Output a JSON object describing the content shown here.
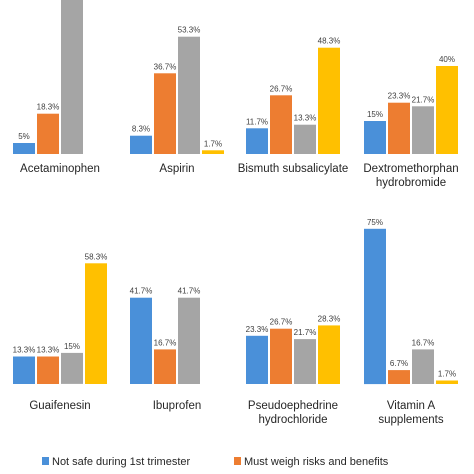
{
  "chart_data": {
    "type": "bar",
    "ylim": [
      0,
      75
    ],
    "grid": false,
    "legend_position": "bottom",
    "categories": [
      [
        "Acetaminophen"
      ],
      [
        "Aspirin"
      ],
      [
        "Bismuth subsalicylate"
      ],
      [
        "Dextromethorphan",
        "hydrobromide"
      ],
      [
        "Guaifenesin"
      ],
      [
        "Ibuprofen"
      ],
      [
        "Pseudoephedrine",
        "hydrochloride"
      ],
      [
        "Vitamin A",
        "supplements"
      ]
    ],
    "series": [
      {
        "name": "Not safe during 1st trimester",
        "color": "#4a90d9",
        "values": [
          5,
          8.3,
          11.7,
          15,
          13.3,
          41.7,
          23.3,
          75
        ],
        "labels": [
          "5%",
          "8.3%",
          "11.7%",
          "15%",
          "13.3%",
          "41.7%",
          "23.3%",
          "75%"
        ]
      },
      {
        "name": "Must weigh risks and benefits",
        "color": "#ed7d31",
        "values": [
          18.3,
          36.7,
          26.7,
          23.3,
          13.3,
          16.7,
          26.7,
          6.7
        ],
        "labels": [
          "18.3%",
          "36.7%",
          "26.7%",
          "23.3%",
          "13.3%",
          "16.7%",
          "26.7%",
          "6.7%"
        ]
      },
      {
        "name": "",
        "color": "#a5a5a5",
        "values": [
          76.7,
          53.3,
          13.3,
          21.7,
          15,
          41.7,
          21.7,
          16.7
        ],
        "labels": [
          "",
          "53.3%",
          "13.3%",
          "21.7%",
          "15%",
          "41.7%",
          "21.7%",
          "16.7%"
        ]
      },
      {
        "name": "",
        "color": "#ffc000",
        "values": [
          0,
          1.7,
          48.3,
          40,
          58.3,
          0,
          28.3,
          1.7
        ],
        "labels": [
          "",
          "1.7%",
          "48.3%",
          "40%",
          "58.3%",
          "",
          "28.3%",
          "1.7%"
        ]
      }
    ]
  }
}
